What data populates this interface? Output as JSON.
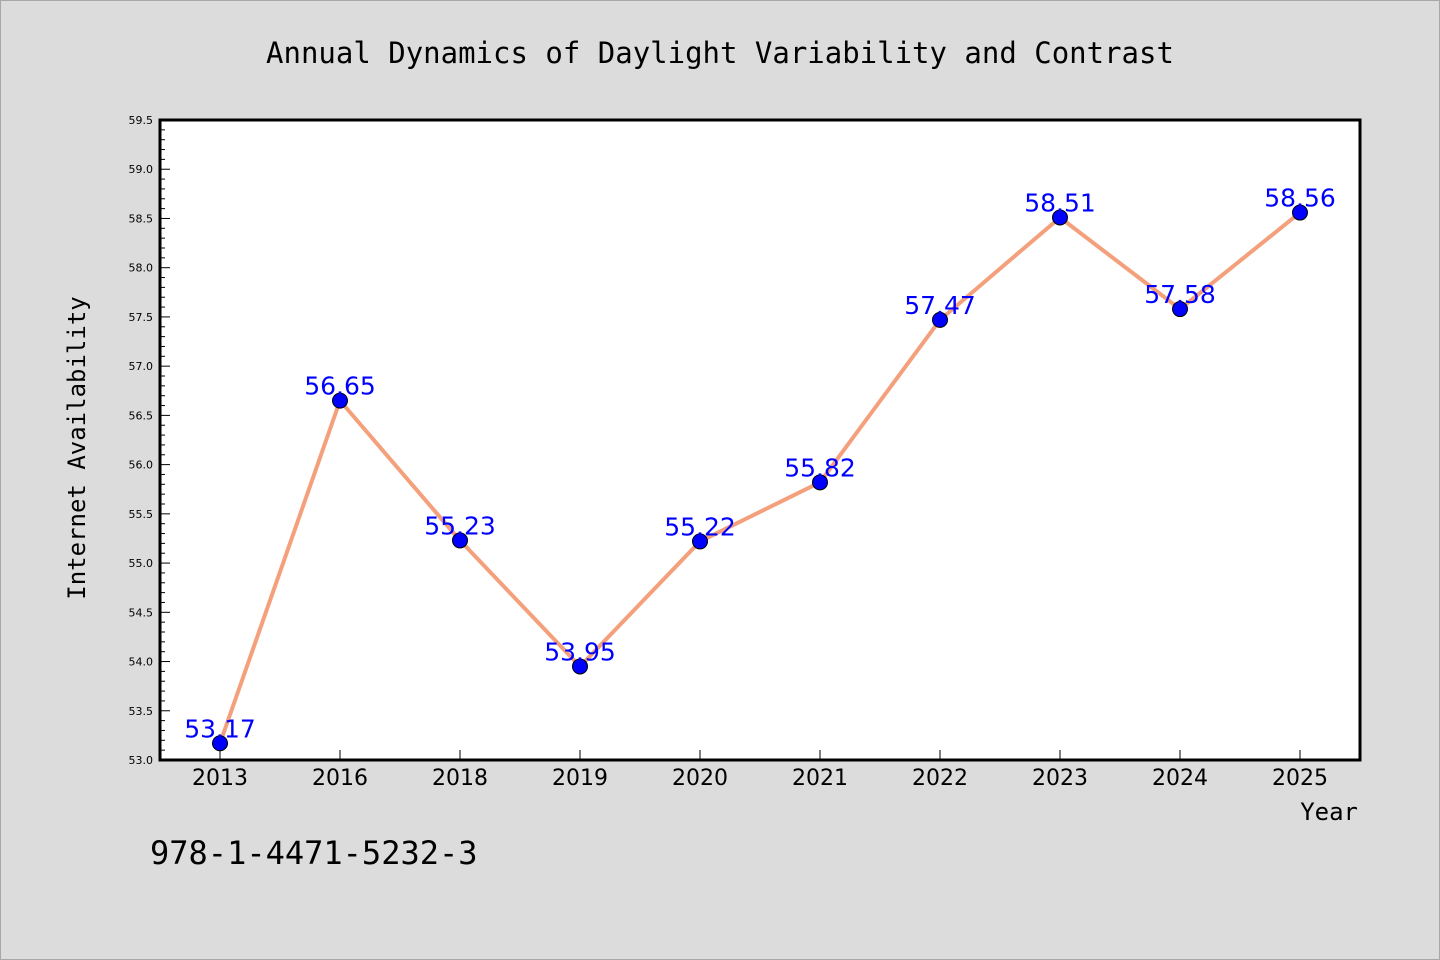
{
  "chart_data": {
    "type": "line",
    "title": "Annual Dynamics of Daylight Variability and Contrast",
    "xlabel": "Year",
    "ylabel": "Internet Availability",
    "categories": [
      "2013",
      "2016",
      "2018",
      "2019",
      "2020",
      "2021",
      "2022",
      "2023",
      "2024",
      "2025"
    ],
    "values": [
      53.17,
      56.65,
      55.23,
      53.95,
      55.22,
      55.82,
      57.47,
      58.51,
      57.58,
      58.56
    ],
    "data_labels": [
      "53.17",
      "56.65",
      "55.23",
      "53.95",
      "55.22",
      "55.82",
      "57.47",
      "58.51",
      "57.58",
      "58.56"
    ],
    "ylim": [
      53.0,
      59.5
    ],
    "y_ticks": [
      "53.0",
      "53.5",
      "54.0",
      "54.5",
      "55.0",
      "55.5",
      "56.0",
      "56.5",
      "57.0",
      "57.5",
      "58.0",
      "58.5",
      "59.0",
      "59.5"
    ],
    "grid": false,
    "legend": "none",
    "line_color": "#f4a07c",
    "marker_color": "#0000ff",
    "label_color": "#0000ff"
  },
  "footer_code": "978-1-4471-5232-3"
}
